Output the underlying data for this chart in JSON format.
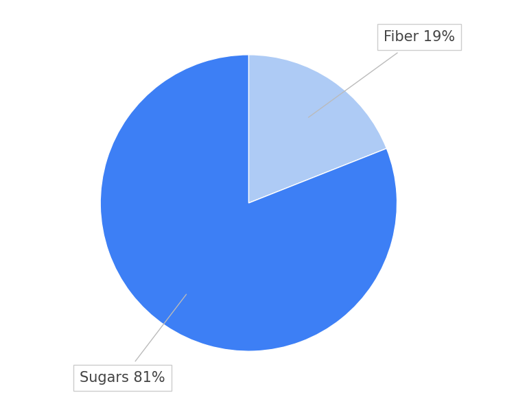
{
  "slices": [
    "Fiber",
    "Sugars"
  ],
  "values": [
    19,
    81
  ],
  "colors": [
    "#aecbf5",
    "#3d7ff5"
  ],
  "sugars_label": "Sugars 81%",
  "fiber_label": "Fiber 19%",
  "background_color": "#ffffff",
  "label_fontsize": 15,
  "label_color": "#444444",
  "startangle": 90
}
